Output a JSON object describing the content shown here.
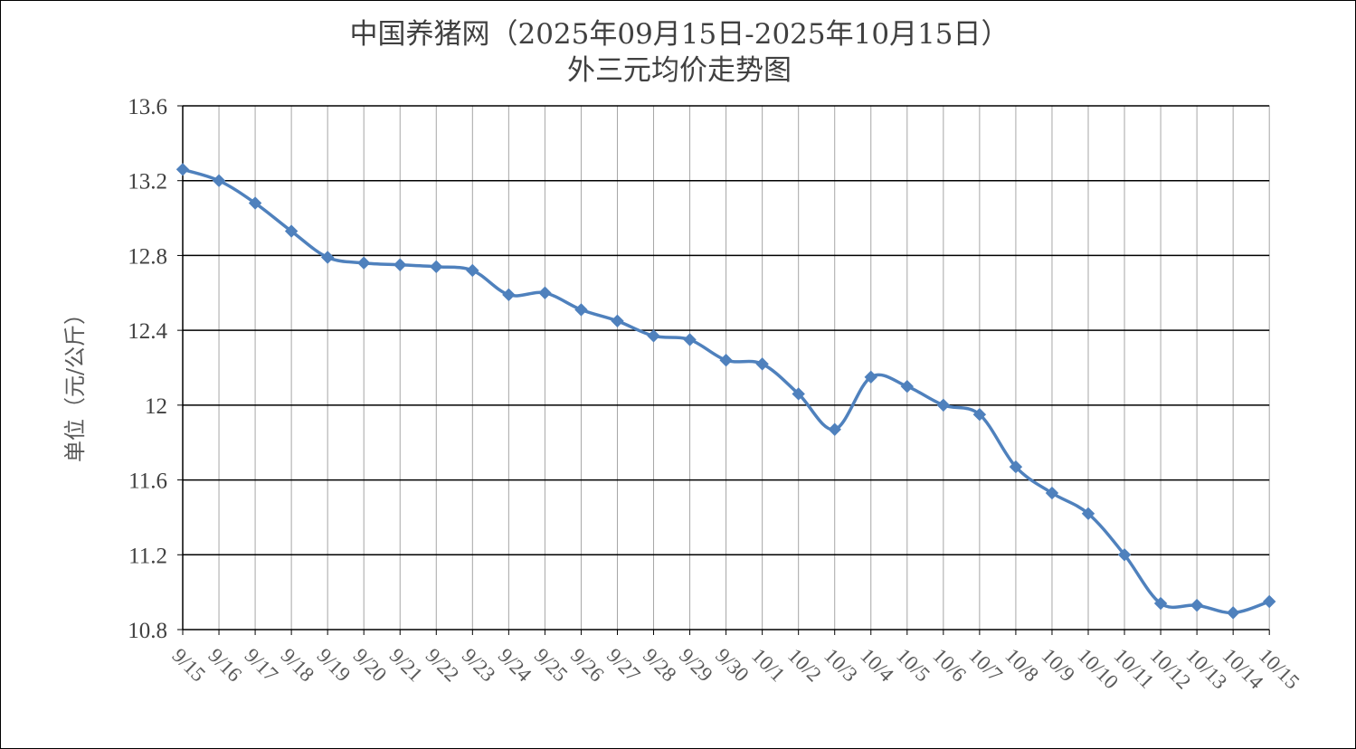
{
  "chart_data": {
    "type": "line",
    "title": "中国养猪网（2025年09月15日-2025年10月15日）",
    "subtitle": "外三元均价走势图",
    "xlabel": "",
    "ylabel": "单位（元/公斤）",
    "ylim": [
      10.8,
      13.6
    ],
    "yticks": [
      10.8,
      11.2,
      11.6,
      12,
      12.4,
      12.8,
      13.2,
      13.6
    ],
    "ytick_labels": [
      "10.8",
      "11.2",
      "11.6",
      "12",
      "12.4",
      "12.8",
      "13.2",
      "13.6"
    ],
    "grid": "major horizontal and vertical gridlines",
    "legend": "none",
    "smooth": true,
    "marker": "diamond",
    "series_color": "#4F81BD",
    "categories": [
      "9/15",
      "9/16",
      "9/17",
      "9/18",
      "9/19",
      "9/20",
      "9/21",
      "9/22",
      "9/23",
      "9/24",
      "9/25",
      "9/26",
      "9/27",
      "9/28",
      "9/29",
      "9/30",
      "10/1",
      "10/2",
      "10/3",
      "10/4",
      "10/5",
      "10/6",
      "10/7",
      "10/8",
      "10/9",
      "10/10",
      "10/11",
      "10/12",
      "10/13",
      "10/14",
      "10/15"
    ],
    "series": [
      {
        "values": [
          13.26,
          13.2,
          13.08,
          12.93,
          12.79,
          12.76,
          12.75,
          12.74,
          12.72,
          12.59,
          12.6,
          12.51,
          12.45,
          12.37,
          12.35,
          12.24,
          12.22,
          12.06,
          11.87,
          12.15,
          12.1,
          12.0,
          11.95,
          11.67,
          11.53,
          11.42,
          11.2,
          10.94,
          10.93,
          10.89,
          10.95
        ]
      }
    ]
  }
}
